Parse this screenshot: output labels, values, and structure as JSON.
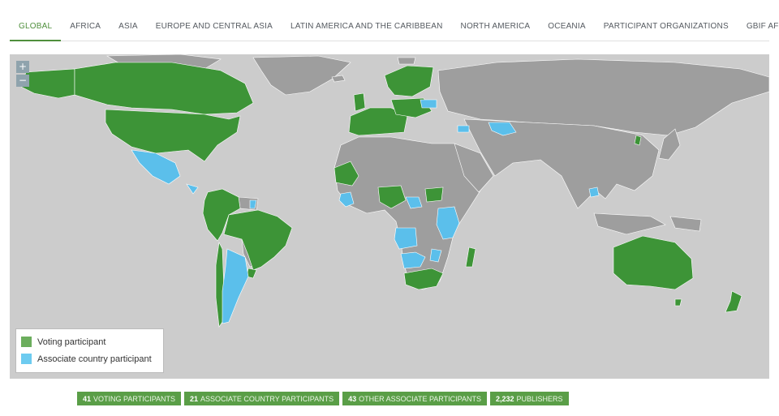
{
  "tabs": [
    {
      "label": "GLOBAL",
      "active": true
    },
    {
      "label": "AFRICA"
    },
    {
      "label": "ASIA"
    },
    {
      "label": "EUROPE AND CENTRAL ASIA"
    },
    {
      "label": "LATIN AMERICA AND THE CARIBBEAN"
    },
    {
      "label": "NORTH AMERICA"
    },
    {
      "label": "OCEANIA"
    },
    {
      "label": "PARTICIPANT ORGANIZATIONS"
    },
    {
      "label": "GBIF AFFILIATES"
    }
  ],
  "map": {
    "zoom_in_label": "+",
    "zoom_out_label": "−",
    "colors": {
      "ocean": "#cccccc",
      "land": "#9e9e9e",
      "voting": "#3d9437",
      "associate": "#5bbfeb"
    }
  },
  "legend": {
    "voting_label": "Voting participant",
    "associate_label": "Associate country participant"
  },
  "stats": {
    "voting_count": "41",
    "voting_label": "VOTING PARTICIPANTS",
    "associate_count": "21",
    "associate_label": "ASSOCIATE COUNTRY PARTICIPANTS",
    "other_count": "43",
    "other_label": "OTHER ASSOCIATE PARTICIPANTS",
    "publishers_count": "2,232",
    "publishers_label": "PUBLISHERS"
  }
}
